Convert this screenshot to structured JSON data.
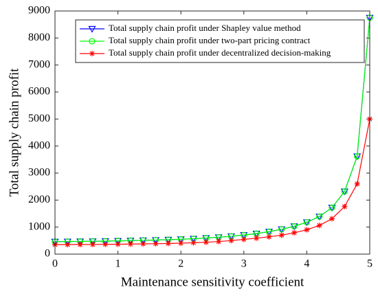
{
  "chart_data": {
    "type": "line",
    "xlabel": "Maintenance sensitivity coefficient",
    "ylabel": "Total supply chain profit",
    "x": [
      0,
      0.2,
      0.4,
      0.6,
      0.8,
      1.0,
      1.2,
      1.4,
      1.6,
      1.8,
      2.0,
      2.2,
      2.4,
      2.6,
      2.8,
      3.0,
      3.2,
      3.4,
      3.6,
      3.8,
      4.0,
      4.2,
      4.4,
      4.6,
      4.8,
      5.0
    ],
    "series": [
      {
        "name": "Total supply chain profit under Shapley value method",
        "color": "#0000ff",
        "marker": "triangle-down",
        "values": [
          460,
          465,
          470,
          475,
          480,
          490,
          500,
          510,
          520,
          535,
          550,
          570,
          595,
          625,
          660,
          705,
          760,
          830,
          920,
          1030,
          1180,
          1390,
          1720,
          2320,
          3620,
          8750
        ]
      },
      {
        "name": "Total supply chain profit under two-part pricing contract",
        "color": "#00ff00",
        "marker": "circle",
        "values": [
          460,
          465,
          470,
          475,
          480,
          490,
          500,
          510,
          520,
          535,
          550,
          570,
          595,
          625,
          660,
          705,
          760,
          830,
          920,
          1030,
          1180,
          1390,
          1720,
          2320,
          3620,
          8750
        ]
      },
      {
        "name": "Total supply chain profit under decentralized decision-making",
        "color": "#ff0000",
        "marker": "asterisk",
        "values": [
          350,
          352,
          355,
          358,
          362,
          366,
          372,
          378,
          386,
          395,
          405,
          420,
          440,
          465,
          500,
          545,
          590,
          640,
          700,
          790,
          900,
          1060,
          1310,
          1760,
          2600,
          5000
        ]
      }
    ],
    "xlim": [
      0,
      5
    ],
    "xticks": [
      0,
      1,
      2,
      3,
      4,
      5
    ],
    "ylim": [
      0,
      9000
    ],
    "yticks": [
      0,
      1000,
      2000,
      3000,
      4000,
      5000,
      6000,
      7000,
      8000,
      9000
    ],
    "legend": "north"
  }
}
